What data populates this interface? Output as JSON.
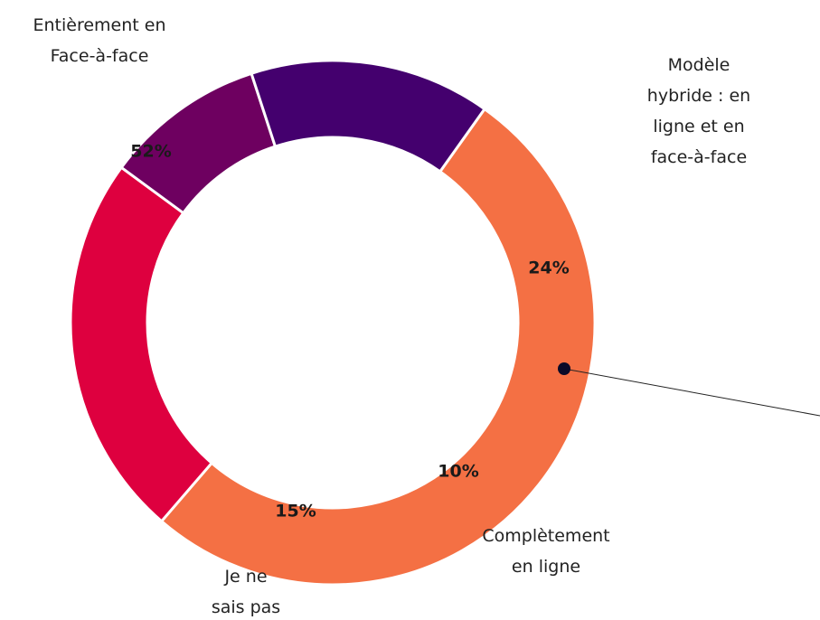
{
  "chart_data": {
    "type": "donut",
    "categories": [
      "Entièrement en\nFace-à-face",
      "Modèle hybride : en\nligne et en face-à-face",
      "Complètement\nen ligne",
      "Je ne\nsais pas"
    ],
    "values": [
      52,
      24,
      10,
      15
    ],
    "value_labels": [
      "52%",
      "24%",
      "10%",
      "15%"
    ],
    "colors": [
      "#f47044",
      "#de003f",
      "#6e0060",
      "#44006e"
    ]
  }
}
